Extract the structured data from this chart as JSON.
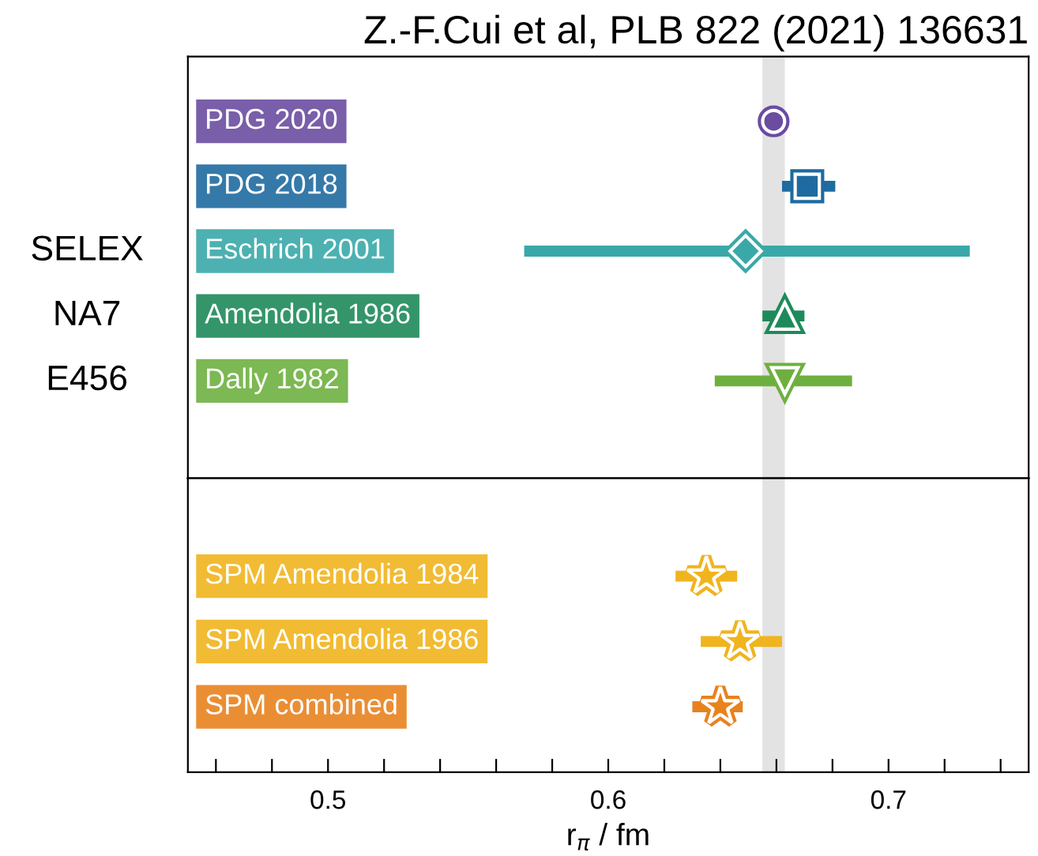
{
  "chart_data": [
    {
      "type": "scatter",
      "title": "Z.-F.Cui et al, PLB 822 (2021) 136631",
      "orientation": "horizontal",
      "categories": [
        "PDG 2020",
        "PDG 2018",
        "Eschrich 2001",
        "Amendolia 1986",
        "Dally 1982"
      ],
      "series": [
        {
          "color": "#6a4ca0",
          "marker": "circle",
          "values": [
            0.659,
            null,
            null,
            null,
            null
          ],
          "errors": [
            null,
            null,
            null,
            null,
            null
          ]
        },
        {
          "color": "#1f6aa0",
          "marker": "square",
          "values": [
            null,
            0.671,
            null,
            null,
            null
          ],
          "errors": [
            null,
            [
              0.662,
              0.681
            ],
            null,
            null,
            null
          ]
        },
        {
          "color": "#3aa8a8",
          "marker": "diamond",
          "values": [
            null,
            null,
            0.649,
            null,
            null
          ],
          "errors": [
            null,
            null,
            [
              0.57,
              0.729
            ],
            null,
            null
          ]
        },
        {
          "color": "#1e8a5a",
          "marker": "triangle",
          "values": [
            null,
            null,
            null,
            0.663,
            null
          ],
          "errors": [
            null,
            null,
            null,
            [
              0.655,
              0.67
            ],
            null
          ]
        },
        {
          "color": "#6eb040",
          "marker": "triangle_down",
          "values": [
            null,
            null,
            null,
            null,
            0.663
          ],
          "errors": [
            null,
            null,
            null,
            null,
            [
              0.638,
              0.687
            ]
          ]
        }
      ],
      "annotations": [
        "SELEX",
        "NA7",
        "E456"
      ],
      "bands": [
        {
          "axis": "x",
          "from": 0.655,
          "to": 0.663,
          "color": "#e3e3e3"
        }
      ],
      "xlim": [
        0.45,
        0.75
      ],
      "tick_labels": false,
      "grid": false
    },
    {
      "type": "scatter",
      "orientation": "horizontal",
      "xlabel": "r$_{π}$ / fm",
      "categories": [
        "SPM Amendolia 1984",
        "SPM Amendolia 1986",
        "SPM combined"
      ],
      "series": [
        {
          "color": "#f0b41e",
          "marker": "star",
          "values": [
            0.635,
            null,
            null
          ],
          "errors": [
            [
              0.624,
              0.646
            ],
            null,
            null
          ]
        },
        {
          "color": "#f0b41e",
          "marker": "star",
          "values": [
            null,
            0.647,
            null
          ],
          "errors": [
            null,
            [
              0.633,
              0.662
            ],
            null
          ]
        },
        {
          "color": "#e8821e",
          "marker": "star",
          "values": [
            null,
            null,
            0.64
          ],
          "errors": [
            null,
            null,
            [
              0.63,
              0.648
            ]
          ]
        }
      ],
      "bands": [
        {
          "axis": "x",
          "from": 0.655,
          "to": 0.663,
          "color": "#e3e3e3"
        }
      ],
      "xlim": [
        0.45,
        0.75
      ],
      "xticks": [
        {
          "value": 0.46,
          "label": null
        },
        {
          "value": 0.48,
          "label": null
        },
        0.5,
        {
          "value": 0.52,
          "label": null
        },
        {
          "value": 0.54,
          "label": null
        },
        {
          "value": 0.56,
          "label": null
        },
        {
          "value": 0.58,
          "label": null
        },
        0.6,
        {
          "value": 0.62,
          "label": null
        },
        {
          "value": 0.64,
          "label": null
        },
        {
          "value": 0.66,
          "label": null
        },
        {
          "value": 0.68,
          "label": null
        },
        0.7,
        {
          "value": 0.72,
          "label": null
        },
        {
          "value": 0.74,
          "label": null
        }
      ],
      "tick_labels": "x",
      "grid": false
    }
  ]
}
